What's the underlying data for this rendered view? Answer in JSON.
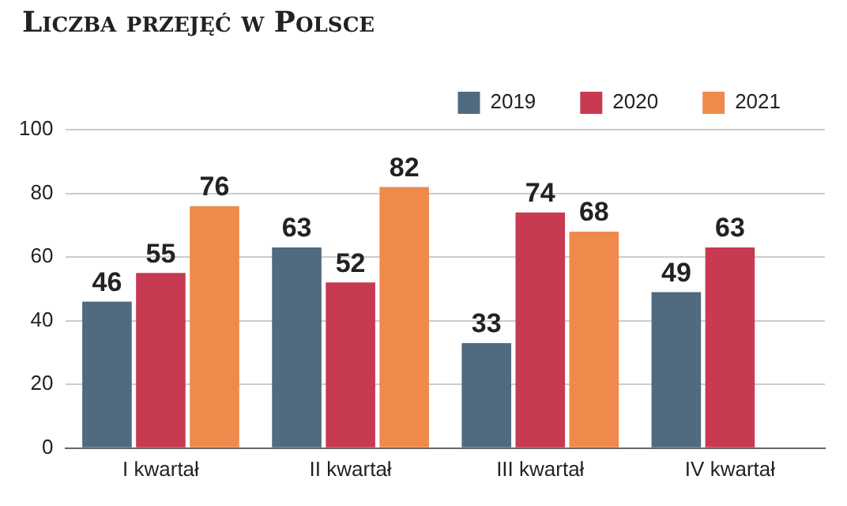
{
  "chart_data": {
    "type": "bar",
    "title": "Liczba przejęć w Polsce",
    "categories": [
      "I kwartał",
      "II kwartał",
      "III kwartał",
      "IV kwartał"
    ],
    "series": [
      {
        "name": "2019",
        "color": "#506a80",
        "values": [
          46,
          63,
          33,
          49
        ]
      },
      {
        "name": "2020",
        "color": "#c73a52",
        "values": [
          55,
          52,
          74,
          63
        ]
      },
      {
        "name": "2021",
        "color": "#ef8a4c",
        "values": [
          76,
          82,
          68,
          null
        ]
      }
    ],
    "ylim": [
      0,
      100
    ],
    "yticks": [
      0,
      20,
      40,
      60,
      80,
      100
    ],
    "grid": "y",
    "legend": "top right",
    "data_labels": true
  }
}
